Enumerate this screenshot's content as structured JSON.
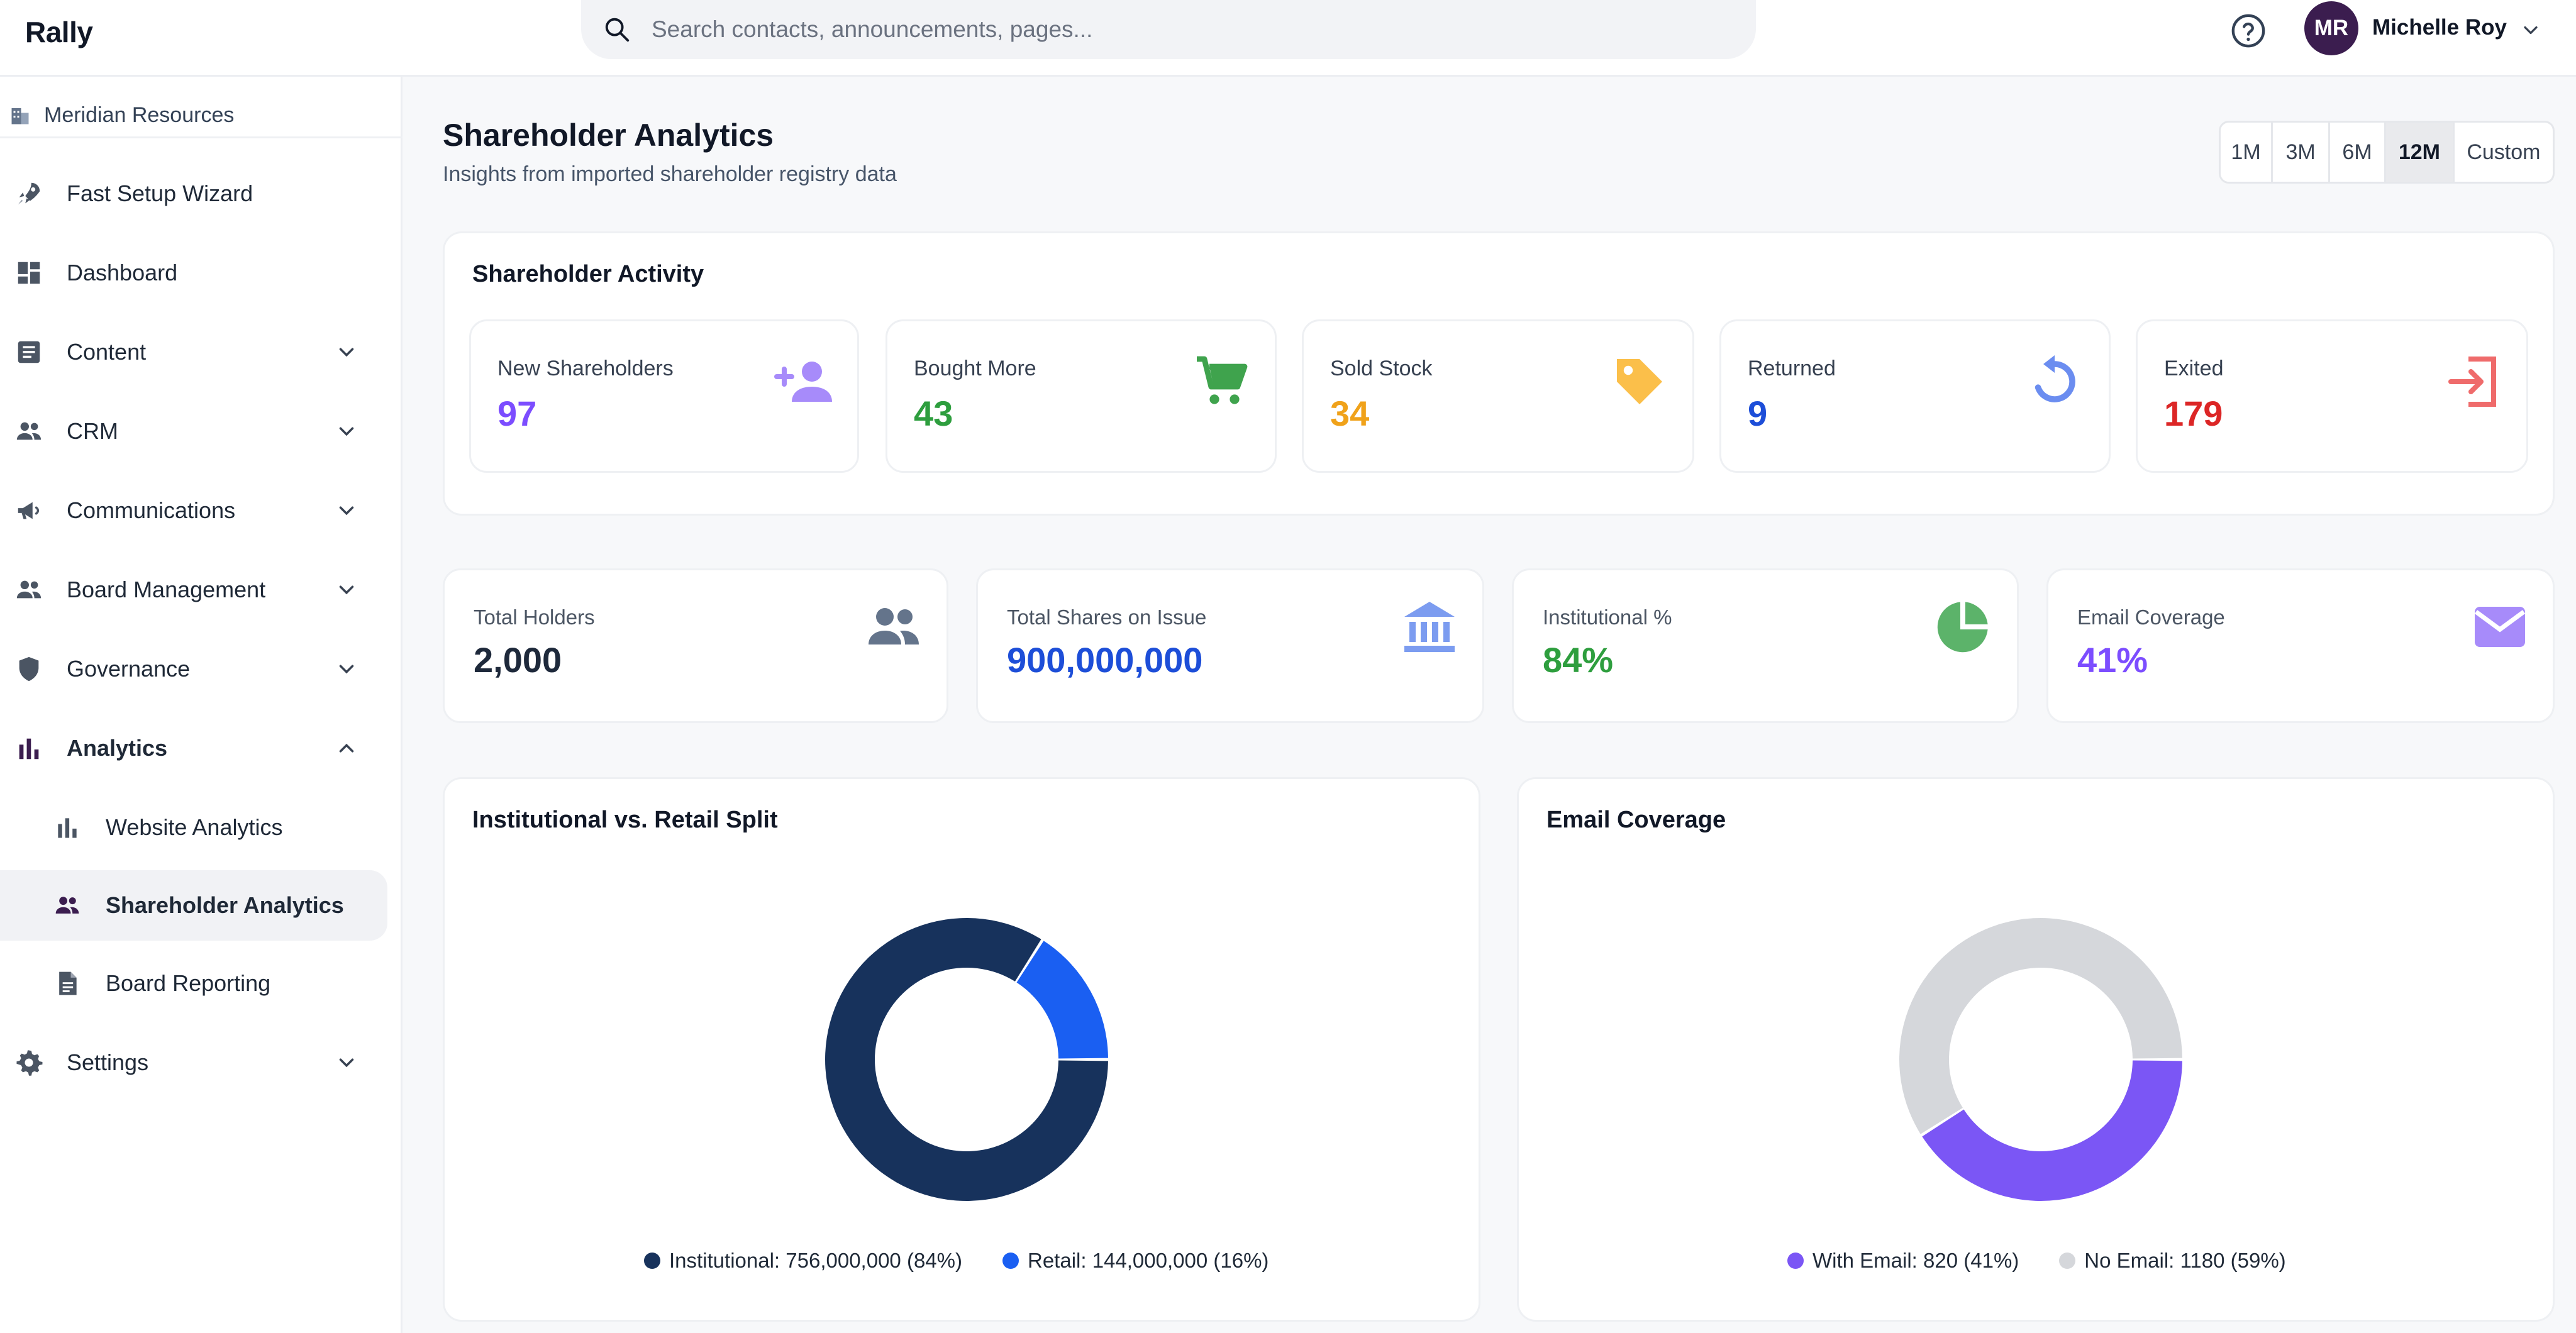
{
  "app": {
    "name": "Rally"
  },
  "search": {
    "placeholder": "Search contacts, announcements, pages..."
  },
  "user": {
    "initials": "MR",
    "name": "Michelle Roy"
  },
  "sidebar": {
    "org": "Meridian Resources",
    "items": [
      {
        "label": "Fast Setup Wizard"
      },
      {
        "label": "Dashboard"
      },
      {
        "label": "Content"
      },
      {
        "label": "CRM"
      },
      {
        "label": "Communications"
      },
      {
        "label": "Board Management"
      },
      {
        "label": "Governance"
      },
      {
        "label": "Analytics"
      },
      {
        "label": "Settings"
      }
    ],
    "analytics_sub": [
      {
        "label": "Website Analytics"
      },
      {
        "label": "Shareholder Analytics"
      },
      {
        "label": "Board Reporting"
      }
    ]
  },
  "page": {
    "title": "Shareholder Analytics",
    "subtitle": "Insights from imported shareholder registry data"
  },
  "range": {
    "options": [
      "1M",
      "3M",
      "6M",
      "12M",
      "Custom"
    ],
    "selected": "12M"
  },
  "activity": {
    "title": "Shareholder Activity",
    "cards": [
      {
        "label": "New Shareholders",
        "value": "97",
        "color": "#7c4dff",
        "icon": "person-add-icon"
      },
      {
        "label": "Bought More",
        "value": "43",
        "color": "#2e9e3e",
        "icon": "cart-icon"
      },
      {
        "label": "Sold Stock",
        "value": "34",
        "color": "#f0a21a",
        "icon": "tag-icon"
      },
      {
        "label": "Returned",
        "value": "9",
        "color": "#1d4ed8",
        "icon": "refresh-icon"
      },
      {
        "label": "Exited",
        "value": "179",
        "color": "#dc2626",
        "icon": "exit-icon"
      }
    ]
  },
  "stats": [
    {
      "label": "Total Holders",
      "value": "2,000",
      "color": "#1e293b",
      "icon": "people-icon"
    },
    {
      "label": "Total Shares on Issue",
      "value": "900,000,000",
      "color": "#1d4ed8",
      "icon": "bank-icon"
    },
    {
      "label": "Institutional %",
      "value": "84%",
      "color": "#2e9e3e",
      "icon": "pie-icon"
    },
    {
      "label": "Email Coverage",
      "value": "41%",
      "color": "#7c4dff",
      "icon": "mail-icon"
    }
  ],
  "chart_data": [
    {
      "type": "pie",
      "title": "Institutional vs. Retail Split",
      "donut": true,
      "slices": [
        {
          "name": "Institutional",
          "value": 756000000,
          "percent": 84,
          "color": "#17325c"
        },
        {
          "name": "Retail",
          "value": 144000000,
          "percent": 16,
          "color": "#1a5ff2"
        }
      ],
      "legend_labels": [
        "Institutional: 756,000,000 (84%)",
        "Retail: 144,000,000 (16%)"
      ],
      "legend_position": "bottom"
    },
    {
      "type": "pie",
      "title": "Email Coverage",
      "donut": true,
      "slices": [
        {
          "name": "With Email",
          "value": 820,
          "percent": 41,
          "color": "#7b56f5"
        },
        {
          "name": "No Email",
          "value": 1180,
          "percent": 59,
          "color": "#d5d7db"
        }
      ],
      "legend_labels": [
        "With Email: 820 (41%)",
        "No Email: 1180 (59%)"
      ],
      "legend_position": "bottom"
    }
  ]
}
